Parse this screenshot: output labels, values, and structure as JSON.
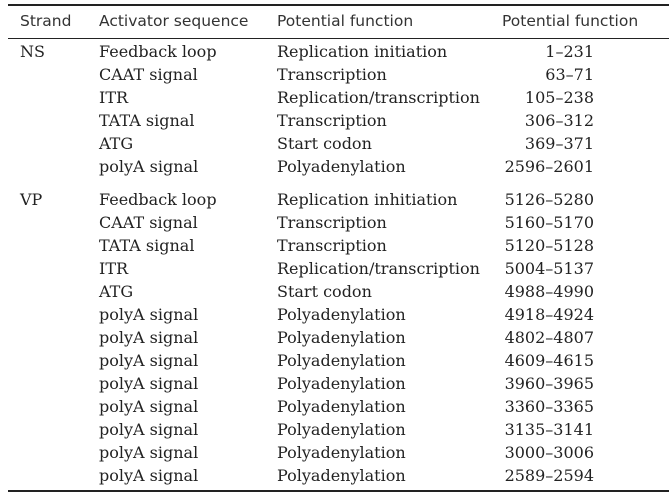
{
  "table": {
    "headers": {
      "strand": "Strand",
      "sequence": "Activator sequence",
      "function": "Potential function",
      "position": "Potential function"
    },
    "rows": [
      {
        "strand": "NS",
        "sequence": "Feedback loop",
        "function": "Replication initiation",
        "position": "1–231"
      },
      {
        "strand": "",
        "sequence": "CAAT signal",
        "function": "Transcription",
        "position": "63–71"
      },
      {
        "strand": "",
        "sequence": "ITR",
        "function": "Replication/transcription",
        "position": "105–238"
      },
      {
        "strand": "",
        "sequence": "TATA signal",
        "function": "Transcription",
        "position": "306–312"
      },
      {
        "strand": "",
        "sequence": "ATG",
        "function": "Start codon",
        "position": "369–371"
      },
      {
        "strand": "",
        "sequence": "polyA signal",
        "function": "Polyadenylation",
        "position": "2596–2601"
      },
      {
        "strand": "VP",
        "sequence": "Feedback loop",
        "function": "Replication inhitiation",
        "position": "5126–5280"
      },
      {
        "strand": "",
        "sequence": "CAAT signal",
        "function": "Transcription",
        "position": "5160–5170"
      },
      {
        "strand": "",
        "sequence": "TATA signal",
        "function": "Transcription",
        "position": "5120–5128"
      },
      {
        "strand": "",
        "sequence": "ITR",
        "function": "Replication/transcription",
        "position": "5004–5137"
      },
      {
        "strand": "",
        "sequence": "ATG",
        "function": "Start codon",
        "position": "4988–4990"
      },
      {
        "strand": "",
        "sequence": "polyA signal",
        "function": "Polyadenylation",
        "position": "4918–4924"
      },
      {
        "strand": "",
        "sequence": "polyA signal",
        "function": "Polyadenylation",
        "position": "4802–4807"
      },
      {
        "strand": "",
        "sequence": "polyA signal",
        "function": "Polyadenylation",
        "position": "4609–4615"
      },
      {
        "strand": "",
        "sequence": "polyA signal",
        "function": "Polyadenylation",
        "position": "3960–3965"
      },
      {
        "strand": "",
        "sequence": "polyA signal",
        "function": "Polyadenylation",
        "position": "3360–3365"
      },
      {
        "strand": "",
        "sequence": "polyA signal",
        "function": "Polyadenylation",
        "position": "3135–3141"
      },
      {
        "strand": "",
        "sequence": "polyA signal",
        "function": "Polyadenylation",
        "position": "3000–3006"
      },
      {
        "strand": "",
        "sequence": "polyA signal",
        "function": "Polyadenylation",
        "position": "2589–2594"
      }
    ]
  }
}
